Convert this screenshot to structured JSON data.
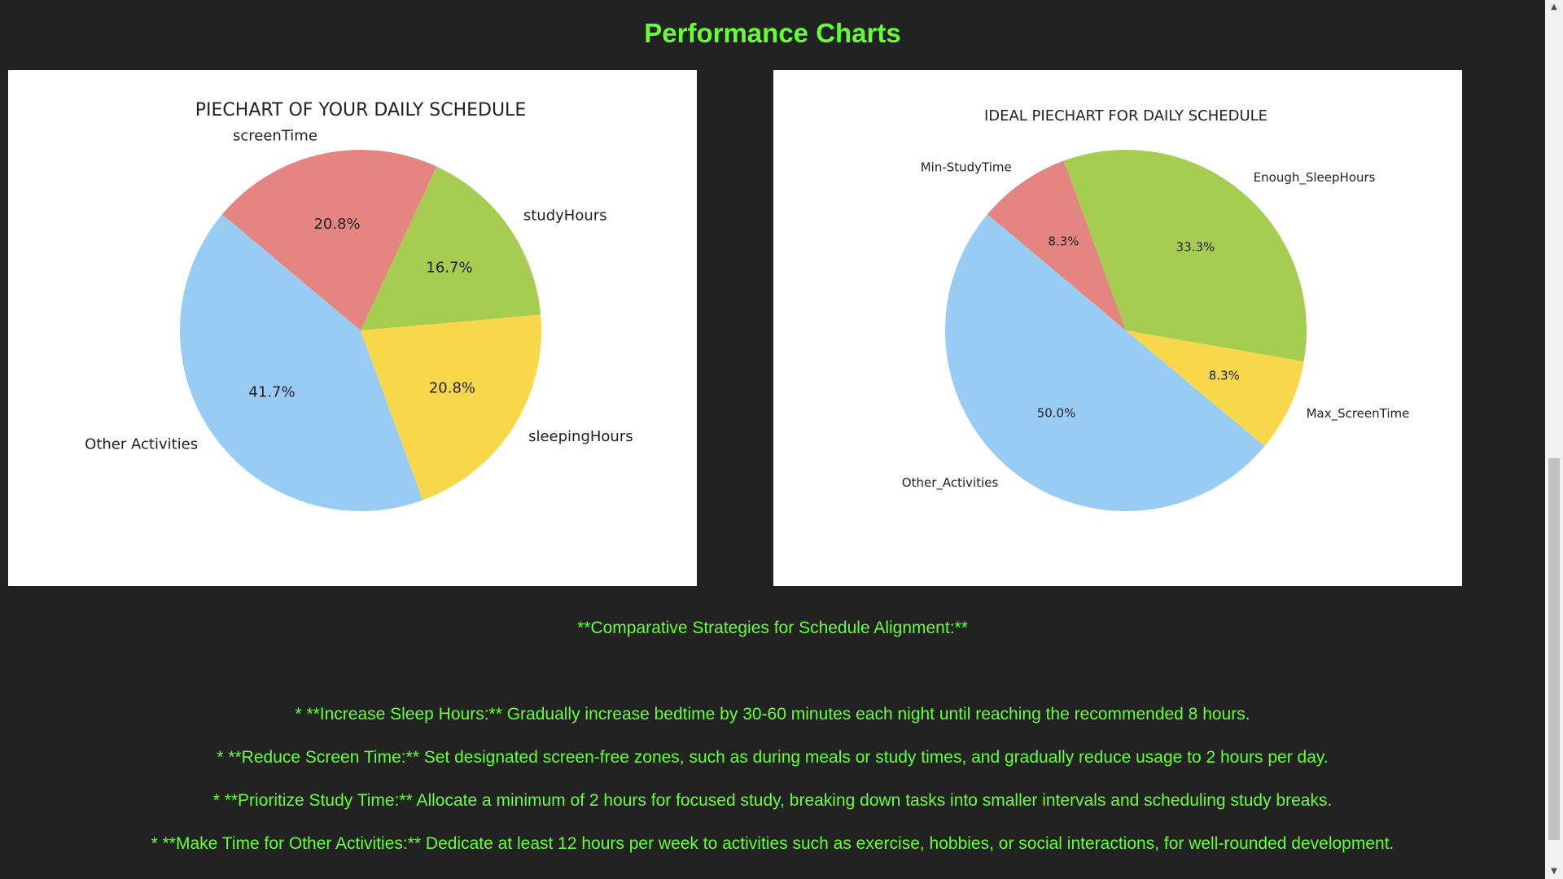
{
  "page": {
    "heading": "Performance Charts",
    "accent_color": "#66ff33"
  },
  "chart_data": [
    {
      "type": "pie",
      "title": "PIECHART OF YOUR DAILY SCHEDULE",
      "slices": [
        {
          "label": "Other Activities",
          "value": 41.7,
          "percent_label": "41.7%",
          "color": "#99ccf5"
        },
        {
          "label": "sleepingHours",
          "value": 20.8,
          "percent_label": "20.8%",
          "color": "#f8d84a"
        },
        {
          "label": "studyHours",
          "value": 16.7,
          "percent_label": "16.7%",
          "color": "#a6cd50"
        },
        {
          "label": "screenTime",
          "value": 20.8,
          "percent_label": "20.8%",
          "color": "#e48582"
        }
      ]
    },
    {
      "type": "pie",
      "title": "IDEAL PIECHART FOR DAILY SCHEDULE",
      "slices": [
        {
          "label": "Other_Activities",
          "value": 50.0,
          "percent_label": "50.0%",
          "color": "#99ccf5"
        },
        {
          "label": "Max_ScreenTime",
          "value": 8.3,
          "percent_label": "8.3%",
          "color": "#f8d84a"
        },
        {
          "label": "Enough_SleepHours",
          "value": 33.3,
          "percent_label": "33.3%",
          "color": "#a6cd50"
        },
        {
          "label": "Min-StudyTime",
          "value": 8.3,
          "percent_label": "8.3%",
          "color": "#e48582"
        }
      ]
    }
  ],
  "strategies": {
    "heading": "**Comparative Strategies for Schedule Alignment:**",
    "items": [
      "* **Increase Sleep Hours:** Gradually increase bedtime by 30-60 minutes each night until reaching the recommended 8 hours.",
      "* **Reduce Screen Time:** Set designated screen-free zones, such as during meals or study times, and gradually reduce usage to 2 hours per day.",
      "* **Prioritize Study Time:** Allocate a minimum of 2 hours for focused study, breaking down tasks into smaller intervals and scheduling study breaks.",
      "* **Make Time for Other Activities:** Dedicate at least 12 hours per week to activities such as exercise, hobbies, or social interactions, for well-rounded development."
    ]
  },
  "scrollbar": {
    "up_icon": "arrow-up-icon",
    "down_icon": "arrow-down-icon"
  }
}
